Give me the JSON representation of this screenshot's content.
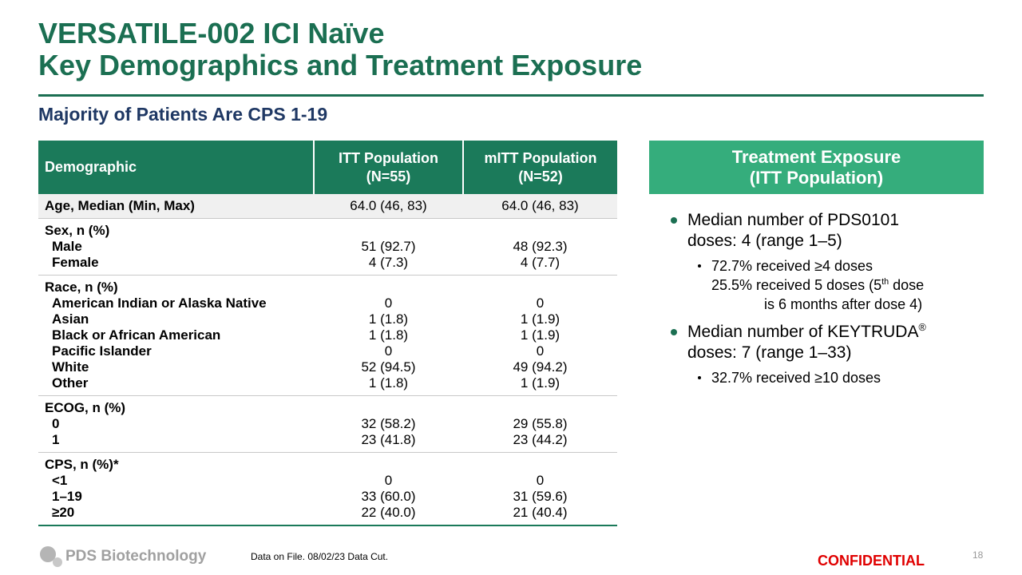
{
  "header": {
    "title_lines": [
      "VERSATILE-002 ICI Naïve",
      "Key Demographics and Treatment Exposure"
    ],
    "subtitle": "Majority of Patients Are CPS 1-19"
  },
  "table": {
    "columns": [
      [
        "Demographic"
      ],
      [
        "ITT Population",
        "(N=55)"
      ],
      [
        "mITT Population",
        "(N=52)"
      ]
    ],
    "groups": [
      {
        "label": "Age, Median (Min, Max)",
        "itt": "64.0 (46, 83)",
        "mitt": "64.0 (46, 83)"
      },
      {
        "label": "Sex, n (%)",
        "rows": [
          {
            "label": "Male",
            "itt": "51 (92.7)",
            "mitt": "48 (92.3)"
          },
          {
            "label": "Female",
            "itt": "4 (7.3)",
            "mitt": "4 (7.7)"
          }
        ]
      },
      {
        "label": "Race, n (%)",
        "rows": [
          {
            "label": "American Indian or Alaska Native",
            "itt": "0",
            "mitt": "0"
          },
          {
            "label": "Asian",
            "itt": "1 (1.8)",
            "mitt": "1 (1.9)"
          },
          {
            "label": "Black or African American",
            "itt": "1 (1.8)",
            "mitt": "1 (1.9)"
          },
          {
            "label": "Pacific Islander",
            "itt": "0",
            "mitt": "0"
          },
          {
            "label": "White",
            "itt": "52 (94.5)",
            "mitt": "49 (94.2)"
          },
          {
            "label": "Other",
            "itt": "1 (1.8)",
            "mitt": "1 (1.9)"
          }
        ]
      },
      {
        "label": "ECOG, n (%)",
        "rows": [
          {
            "label": "0",
            "itt": "32 (58.2)",
            "mitt": "29 (55.8)"
          },
          {
            "label": "1",
            "itt": "23 (41.8)",
            "mitt": "23 (44.2)"
          }
        ]
      },
      {
        "label": "CPS, n (%)*",
        "rows": [
          {
            "label": "<1",
            "itt": "0",
            "mitt": "0"
          },
          {
            "label": "1–19",
            "itt": "33 (60.0)",
            "mitt": "31 (59.6)"
          },
          {
            "label": "≥20",
            "itt": "22 (40.0)",
            "mitt": "21 (40.4)"
          }
        ]
      }
    ]
  },
  "panel": {
    "title_lines": [
      "Treatment Exposure",
      "(ITT Population)"
    ],
    "bullets": [
      {
        "lines": [
          [
            {
              "text": "Median number of PDS0101"
            }
          ],
          [
            {
              "text": "doses: 4 (range 1–5)"
            }
          ]
        ],
        "sub": [
          {
            "lines": [
              [
                {
                  "text": "72.7% received  ≥4 doses"
                }
              ],
              [
                {
                  "text": "25.5% received 5 doses (5"
                },
                {
                  "sup": "th"
                },
                {
                  "text": " dose"
                }
              ],
              [
                {
                  "text": "is 6 months after dose 4)"
                }
              ]
            ]
          }
        ]
      },
      {
        "lines": [
          [
            {
              "text": "Median number of KEYTRUDA"
            },
            {
              "sup": "®"
            }
          ],
          [
            {
              "text": "doses: 7 (range 1–33)"
            }
          ]
        ],
        "sub": [
          {
            "lines": [
              [
                {
                  "text": "32.7% received  ≥10 doses"
                }
              ]
            ]
          }
        ]
      }
    ]
  },
  "footer": {
    "logo": "PDS Biotechnology",
    "note": "Data on File. 08/02/23 Data Cut.",
    "confidential": "CONFIDENTIAL",
    "page": "18"
  }
}
